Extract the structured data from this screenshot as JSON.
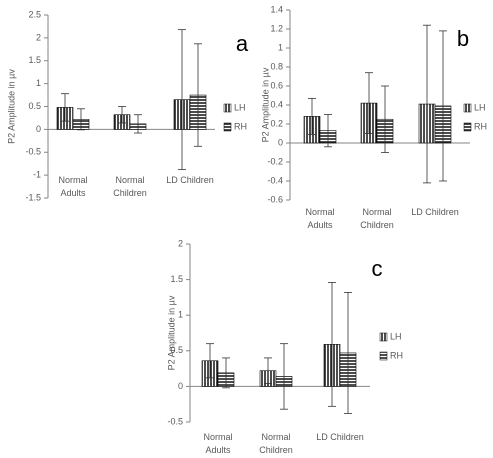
{
  "chart_data": [
    {
      "type": "bar",
      "annotation": "a",
      "y_label": "P2 Amplitude in µv",
      "categories": [
        "Normal Adults",
        "Normal Children",
        "LD Children"
      ],
      "series": [
        {
          "name": "LH",
          "color": "#000000",
          "pattern": "vertical",
          "values": [
            0.48,
            0.32,
            0.65
          ],
          "errors": [
            0.3,
            0.18,
            1.53
          ]
        },
        {
          "name": "RH",
          "color": "#000000",
          "pattern": "horizontal",
          "values": [
            0.22,
            0.12,
            0.75
          ],
          "errors": [
            0.23,
            0.2,
            1.12
          ]
        }
      ],
      "ylim": [
        -1.5,
        2.5
      ],
      "yticks": [
        -1.5,
        -1,
        -0.5,
        0,
        0.5,
        1,
        1.5,
        2,
        2.5
      ]
    },
    {
      "type": "bar",
      "annotation": "b",
      "y_label": "P2 Amplitude in µv",
      "categories": [
        "Normal Adults",
        "Normal Children",
        "LD Children"
      ],
      "series": [
        {
          "name": "LH",
          "color": "#000000",
          "pattern": "vertical",
          "values": [
            0.28,
            0.42,
            0.41
          ],
          "errors": [
            0.19,
            0.32,
            0.83
          ]
        },
        {
          "name": "RH",
          "color": "#000000",
          "pattern": "horizontal",
          "values": [
            0.13,
            0.25,
            0.39
          ],
          "errors": [
            0.17,
            0.35,
            0.79
          ]
        }
      ],
      "ylim": [
        -0.6,
        1.4
      ],
      "yticks": [
        -0.6,
        -0.4,
        -0.2,
        0,
        0.2,
        0.4,
        0.6,
        0.8,
        1,
        1.2,
        1.4
      ]
    },
    {
      "type": "bar",
      "annotation": "c",
      "y_label": "P2 Amplitude in µv",
      "categories": [
        "Normal Adults",
        "Normal Children",
        "LD Children"
      ],
      "series": [
        {
          "name": "LH",
          "color": "#000000",
          "pattern": "vertical",
          "values": [
            0.36,
            0.22,
            0.59
          ],
          "errors": [
            0.24,
            0.18,
            0.87
          ]
        },
        {
          "name": "RH",
          "color": "#000000",
          "pattern": "horizontal",
          "values": [
            0.19,
            0.14,
            0.47
          ],
          "errors": [
            0.21,
            0.46,
            0.85
          ]
        }
      ],
      "ylim": [
        -0.5,
        2
      ],
      "yticks": [
        -0.5,
        0,
        0.5,
        1,
        1.5,
        2
      ]
    }
  ]
}
